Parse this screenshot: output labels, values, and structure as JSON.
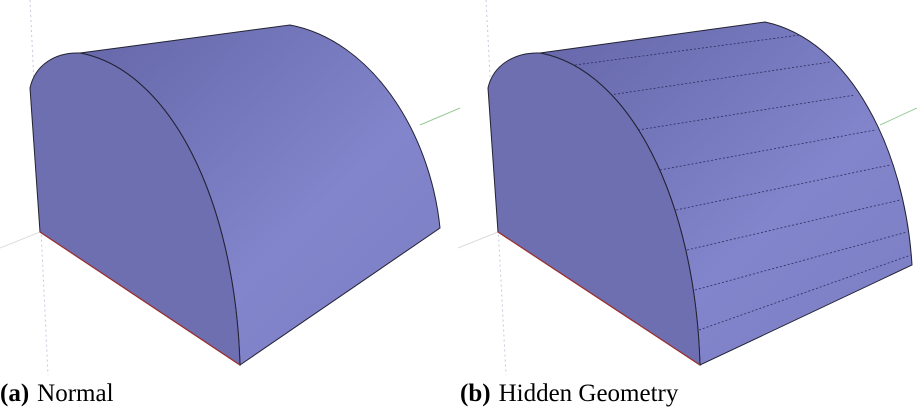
{
  "panels": [
    {
      "label": "(a)",
      "caption": "Normal"
    },
    {
      "label": "(b)",
      "caption": "Hidden Geometry"
    }
  ]
}
